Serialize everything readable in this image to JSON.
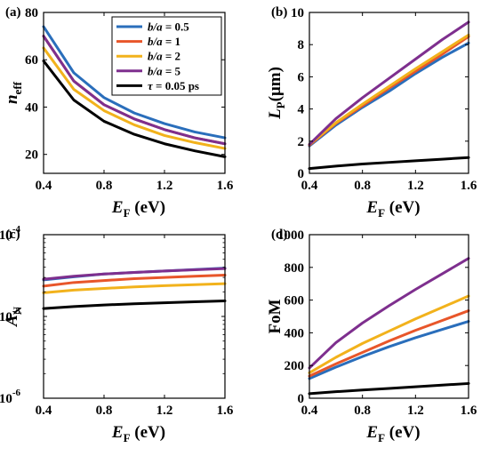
{
  "chart_data": [
    {
      "type": "line",
      "panel": "(a)",
      "xlabel": "E",
      "xlabel_sub": "F",
      "xlabel_unit": " (eV)",
      "ylabel": "n",
      "ylabel_sub": "eff",
      "ylabel_unit": "",
      "xlim": [
        0.4,
        1.6
      ],
      "ylim": [
        12,
        80
      ],
      "yscale": "linear",
      "xticks": [
        0.4,
        0.8,
        1.2,
        1.6
      ],
      "xtick_labels": [
        "0.4",
        "0.8",
        "1.2",
        "1.6"
      ],
      "yticks": [
        20,
        40,
        60,
        80
      ],
      "ytick_labels": [
        "20",
        "40",
        "60",
        "80"
      ],
      "legend_position": "top-right",
      "series": [
        {
          "key": "s1",
          "name": "= 0.5",
          "color": "#2a6ebb",
          "x": [
            0.4,
            0.6,
            0.8,
            1.0,
            1.2,
            1.4,
            1.6
          ],
          "y": [
            74,
            54.5,
            44,
            37.5,
            33,
            29.5,
            27
          ]
        },
        {
          "key": "s2",
          "name": "= 1",
          "color": "#e8562a",
          "x": [
            0.4,
            0.6,
            0.8,
            1.0,
            1.2,
            1.4,
            1.6
          ],
          "y": [
            70,
            51,
            41,
            35,
            30.5,
            27,
            24.5
          ]
        },
        {
          "key": "s3",
          "name": "= 2",
          "color": "#f2b21c",
          "x": [
            0.4,
            0.6,
            0.8,
            1.0,
            1.2,
            1.4,
            1.6
          ],
          "y": [
            65,
            47.5,
            38.5,
            32.5,
            28,
            25,
            22.5
          ]
        },
        {
          "key": "s4",
          "name": "= 5",
          "color": "#7e2f8e",
          "x": [
            0.4,
            0.6,
            0.8,
            1.0,
            1.2,
            1.4,
            1.6
          ],
          "y": [
            70,
            51,
            41,
            35,
            30.5,
            27,
            24.5
          ]
        },
        {
          "key": "s5",
          "name": "= 0.05 ps",
          "color": "#000000",
          "x": [
            0.4,
            0.6,
            0.8,
            1.0,
            1.2,
            1.4,
            1.6
          ],
          "y": [
            59.5,
            43,
            34,
            28.5,
            24.5,
            21.5,
            19
          ]
        }
      ]
    },
    {
      "type": "line",
      "panel": "(b)",
      "xlabel": "E",
      "xlabel_sub": "F",
      "xlabel_unit": " (eV)",
      "ylabel": "L",
      "ylabel_sub": "P",
      "ylabel_unit": "(μm)",
      "xlim": [
        0.4,
        1.6
      ],
      "ylim": [
        0,
        10
      ],
      "yscale": "linear",
      "xticks": [
        0.4,
        0.8,
        1.2,
        1.6
      ],
      "xtick_labels": [
        "0.4",
        "0.8",
        "1.2",
        "1.6"
      ],
      "yticks": [
        0,
        2,
        4,
        6,
        8,
        10
      ],
      "ytick_labels": [
        "0",
        "2",
        "4",
        "6",
        "8",
        "10"
      ],
      "series": [
        {
          "key": "s1",
          "color": "#2a6ebb",
          "x": [
            0.4,
            0.6,
            0.8,
            1.0,
            1.2,
            1.4,
            1.6
          ],
          "y": [
            1.7,
            3.0,
            4.1,
            5.1,
            6.2,
            7.2,
            8.1
          ]
        },
        {
          "key": "s2",
          "color": "#e8562a",
          "x": [
            0.4,
            0.6,
            0.8,
            1.0,
            1.2,
            1.4,
            1.6
          ],
          "y": [
            1.75,
            3.1,
            4.2,
            5.3,
            6.35,
            7.4,
            8.5
          ]
        },
        {
          "key": "s3",
          "color": "#f2b21c",
          "x": [
            0.4,
            0.6,
            0.8,
            1.0,
            1.2,
            1.4,
            1.6
          ],
          "y": [
            1.8,
            3.15,
            4.3,
            5.4,
            6.5,
            7.55,
            8.6
          ]
        },
        {
          "key": "s4",
          "color": "#7e2f8e",
          "x": [
            0.4,
            0.6,
            0.8,
            1.0,
            1.2,
            1.4,
            1.6
          ],
          "y": [
            1.8,
            3.4,
            4.7,
            5.9,
            7.1,
            8.3,
            9.4
          ]
        },
        {
          "key": "s5",
          "color": "#000000",
          "x": [
            0.4,
            0.6,
            0.8,
            1.0,
            1.2,
            1.4,
            1.6
          ],
          "y": [
            0.3,
            0.45,
            0.58,
            0.68,
            0.78,
            0.88,
            0.98
          ]
        }
      ]
    },
    {
      "type": "line",
      "panel": "(c)",
      "xlabel": "E",
      "xlabel_sub": "F",
      "xlabel_unit": " (eV)",
      "ylabel": "A",
      "ylabel_sub": "N",
      "ylabel_unit": "",
      "xlim": [
        0.4,
        1.6
      ],
      "ylim": [
        1e-06,
        0.0001
      ],
      "yscale": "log",
      "xticks": [
        0.4,
        0.8,
        1.2,
        1.6
      ],
      "xtick_labels": [
        "0.4",
        "0.8",
        "1.2",
        "1.6"
      ],
      "yticks": [
        1e-06,
        1e-05,
        0.0001
      ],
      "ytick_labels": [
        "10",
        "10",
        "10"
      ],
      "ytick_exponents": [
        "-6",
        "-5",
        "-4"
      ],
      "series": [
        {
          "key": "s1",
          "color": "#2a6ebb",
          "x": [
            0.4,
            0.6,
            0.8,
            1.0,
            1.2,
            1.4,
            1.6
          ],
          "y": [
            2.8e-05,
            3.05e-05,
            3.3e-05,
            3.45e-05,
            3.6e-05,
            3.75e-05,
            3.9e-05
          ]
        },
        {
          "key": "s2",
          "color": "#e8562a",
          "x": [
            0.4,
            0.6,
            0.8,
            1.0,
            1.2,
            1.4,
            1.6
          ],
          "y": [
            2.35e-05,
            2.6e-05,
            2.75e-05,
            2.9e-05,
            3e-05,
            3.1e-05,
            3.2e-05
          ]
        },
        {
          "key": "s3",
          "color": "#f2b21c",
          "x": [
            0.4,
            0.6,
            0.8,
            1.0,
            1.2,
            1.4,
            1.6
          ],
          "y": [
            1.95e-05,
            2.1e-05,
            2.2e-05,
            2.3e-05,
            2.38e-05,
            2.45e-05,
            2.52e-05
          ]
        },
        {
          "key": "s4",
          "color": "#7e2f8e",
          "x": [
            0.4,
            0.6,
            0.8,
            1.0,
            1.2,
            1.4,
            1.6
          ],
          "y": [
            2.85e-05,
            3.1e-05,
            3.3e-05,
            3.45e-05,
            3.6e-05,
            3.72e-05,
            3.85e-05
          ]
        },
        {
          "key": "s5",
          "color": "#000000",
          "x": [
            0.4,
            0.6,
            0.8,
            1.0,
            1.2,
            1.4,
            1.6
          ],
          "y": [
            1.25e-05,
            1.32e-05,
            1.38e-05,
            1.43e-05,
            1.47e-05,
            1.51e-05,
            1.55e-05
          ]
        }
      ]
    },
    {
      "type": "line",
      "panel": "(d)",
      "xlabel": "E",
      "xlabel_sub": "F",
      "xlabel_unit": " (eV)",
      "ylabel": "FoM",
      "ylabel_sub": "",
      "ylabel_unit": "",
      "xlim": [
        0.4,
        1.6
      ],
      "ylim": [
        0,
        1000
      ],
      "yscale": "linear",
      "xticks": [
        0.4,
        0.8,
        1.2,
        1.6
      ],
      "xtick_labels": [
        "0.4",
        "0.8",
        "1.2",
        "1.6"
      ],
      "yticks": [
        0,
        200,
        400,
        600,
        800,
        1000
      ],
      "ytick_labels": [
        "0",
        "200",
        "400",
        "600",
        "800",
        "1000"
      ],
      "series": [
        {
          "key": "s1",
          "color": "#2a6ebb",
          "x": [
            0.4,
            0.6,
            0.8,
            1.0,
            1.2,
            1.4,
            1.6
          ],
          "y": [
            120,
            190,
            255,
            315,
            370,
            420,
            470
          ]
        },
        {
          "key": "s2",
          "color": "#e8562a",
          "x": [
            0.4,
            0.6,
            0.8,
            1.0,
            1.2,
            1.4,
            1.6
          ],
          "y": [
            135,
            210,
            280,
            350,
            415,
            475,
            535
          ]
        },
        {
          "key": "s3",
          "color": "#f2b21c",
          "x": [
            0.4,
            0.6,
            0.8,
            1.0,
            1.2,
            1.4,
            1.6
          ],
          "y": [
            155,
            250,
            335,
            410,
            485,
            555,
            625
          ]
        },
        {
          "key": "s4",
          "color": "#7e2f8e",
          "x": [
            0.4,
            0.6,
            0.8,
            1.0,
            1.2,
            1.4,
            1.6
          ],
          "y": [
            185,
            340,
            460,
            565,
            665,
            760,
            855
          ]
        },
        {
          "key": "s5",
          "color": "#000000",
          "x": [
            0.4,
            0.6,
            0.8,
            1.0,
            1.2,
            1.4,
            1.6
          ],
          "y": [
            28,
            40,
            50,
            60,
            70,
            80,
            90
          ]
        }
      ]
    }
  ],
  "legend": [
    {
      "key": "s1",
      "symbol": "b/a",
      "label": "= 0.5",
      "color": "#2a6ebb"
    },
    {
      "key": "s2",
      "symbol": "b/a",
      "label": "= 1",
      "color": "#e8562a"
    },
    {
      "key": "s3",
      "symbol": "b/a",
      "label": "= 2",
      "color": "#f2b21c"
    },
    {
      "key": "s4",
      "symbol": "b/a",
      "label": "= 5",
      "color": "#7e2f8e"
    },
    {
      "key": "s5",
      "symbol": "τ",
      "label": "= 0.05 ps",
      "color": "#000000"
    }
  ]
}
